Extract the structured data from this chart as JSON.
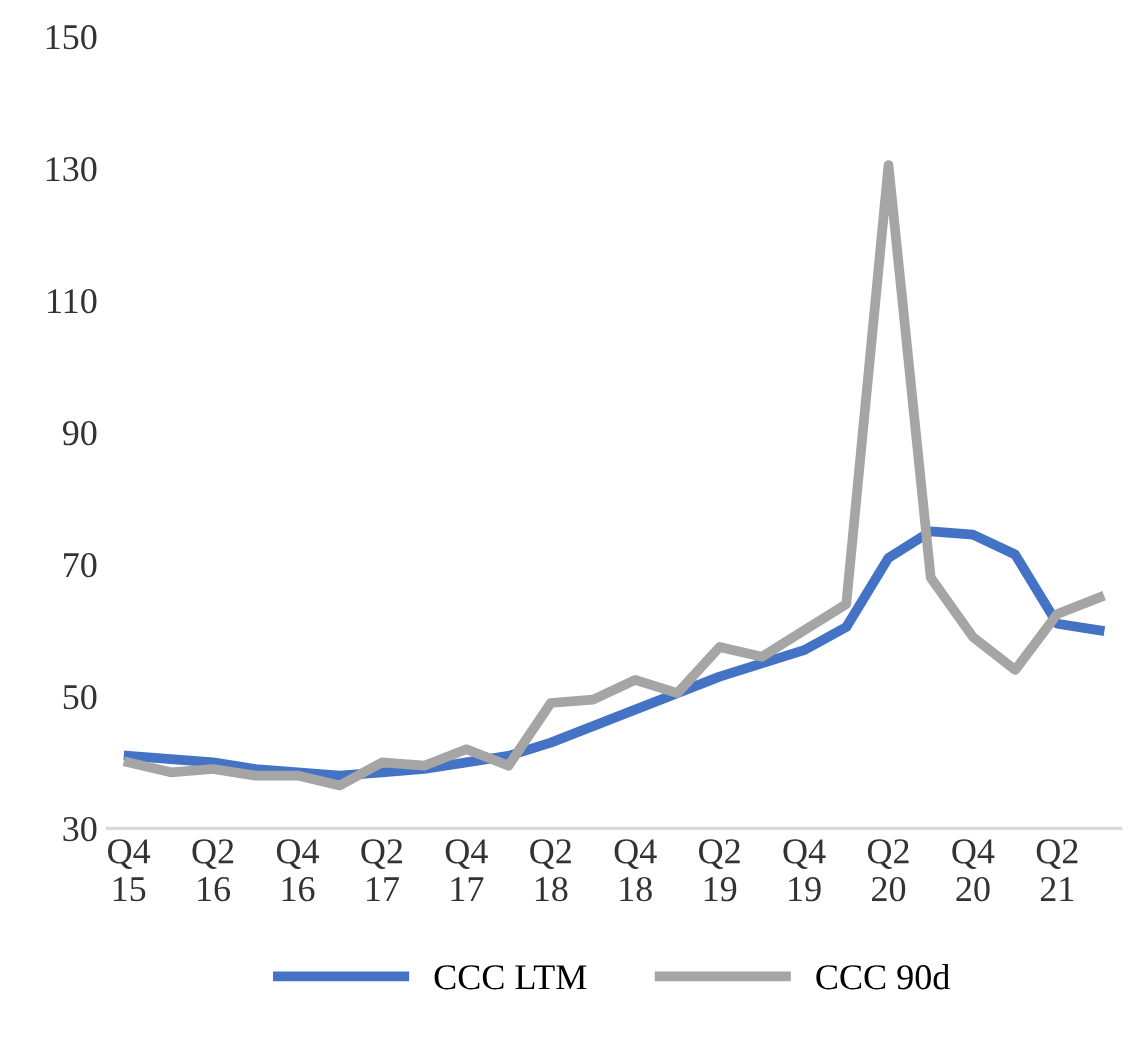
{
  "chart_data": {
    "type": "line",
    "categories": [
      "Q4\n15",
      null,
      "Q2\n16",
      null,
      "Q4\n16",
      null,
      "Q2\n17",
      null,
      "Q4\n17",
      null,
      "Q2\n18",
      null,
      "Q4\n18",
      null,
      "Q2\n19",
      null,
      "Q4\n19",
      null,
      "Q2\n20",
      null,
      "Q4\n20",
      null,
      "Q2\n21",
      null
    ],
    "series": [
      {
        "name": "CCC LTM",
        "color": "#4472c4",
        "values": [
          41,
          40.5,
          40,
          39,
          38.5,
          38,
          38.5,
          39,
          40,
          41,
          43,
          45.5,
          48,
          50.5,
          53,
          55,
          57,
          60.5,
          71,
          75,
          74.5,
          71.5,
          61,
          60
        ]
      },
      {
        "name": "CCC 90d",
        "color": "#a5a5a5",
        "values": [
          40,
          38.5,
          39,
          38,
          38,
          36.5,
          40,
          39.5,
          42,
          39.5,
          49,
          49.5,
          52.5,
          50.5,
          57.5,
          56,
          60,
          64,
          130.5,
          68,
          59,
          54,
          62.5,
          65
        ]
      }
    ],
    "ylim": [
      30,
      150
    ],
    "yticks": [
      30,
      50,
      70,
      90,
      110,
      130,
      150
    ],
    "legend": "bottom",
    "line_style": "solid",
    "marker": "none"
  }
}
